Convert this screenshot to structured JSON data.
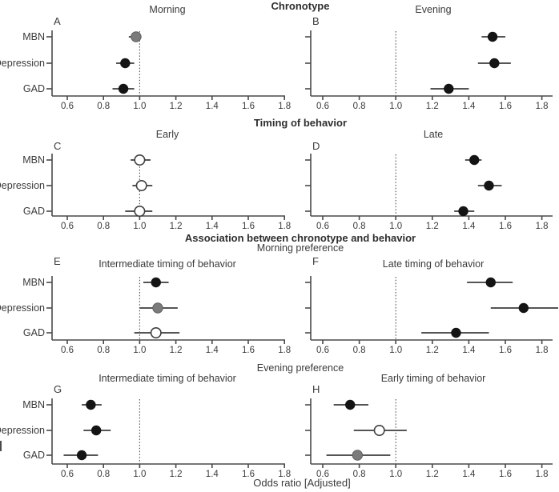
{
  "chart_data": {
    "type": "scatter",
    "subtype": "forest-plot-grid",
    "xlabel": "Odds ratio [Adjusted]",
    "x_ticks": [
      0.6,
      0.8,
      1.0,
      1.2,
      1.4,
      1.6,
      1.8
    ],
    "x_range": [
      0.52,
      1.9
    ],
    "reference_line": 1.0,
    "grid": false,
    "legend": false,
    "categories": [
      "MBN",
      "Depression",
      "GAD"
    ],
    "marker_colors": {
      "black": "#141414",
      "gray": "#7b7b7b",
      "white": "#ffffff"
    },
    "axis_color": "#4a4a4a",
    "line_color": "#555555",
    "text_color": "#3b3b3b",
    "sections": [
      {
        "title": "Chronotype",
        "subtitle": null,
        "panels": [
          {
            "letter": "A",
            "title": "Morning",
            "show_y_labels": true,
            "points": [
              {
                "label": "MBN",
                "or": 0.98,
                "lo": 0.94,
                "hi": 1.01,
                "marker": "gray"
              },
              {
                "label": "Depression",
                "or": 0.92,
                "lo": 0.87,
                "hi": 0.97,
                "marker": "black"
              },
              {
                "label": "GAD",
                "or": 0.91,
                "lo": 0.85,
                "hi": 0.97,
                "marker": "black"
              }
            ]
          },
          {
            "letter": "B",
            "title": "Evening",
            "show_y_labels": false,
            "points": [
              {
                "label": "MBN",
                "or": 1.53,
                "lo": 1.47,
                "hi": 1.6,
                "marker": "black"
              },
              {
                "label": "Depression",
                "or": 1.54,
                "lo": 1.45,
                "hi": 1.63,
                "marker": "black"
              },
              {
                "label": "GAD",
                "or": 1.29,
                "lo": 1.19,
                "hi": 1.4,
                "marker": "black"
              }
            ]
          }
        ]
      },
      {
        "title": "Timing of behavior",
        "subtitle": null,
        "panels": [
          {
            "letter": "C",
            "title": "Early",
            "show_y_labels": true,
            "points": [
              {
                "label": "MBN",
                "or": 1.0,
                "lo": 0.95,
                "hi": 1.06,
                "marker": "white"
              },
              {
                "label": "Depression",
                "or": 1.01,
                "lo": 0.96,
                "hi": 1.07,
                "marker": "white"
              },
              {
                "label": "GAD",
                "or": 1.0,
                "lo": 0.92,
                "hi": 1.07,
                "marker": "white"
              }
            ]
          },
          {
            "letter": "D",
            "title": "Late",
            "show_y_labels": false,
            "points": [
              {
                "label": "MBN",
                "or": 1.43,
                "lo": 1.38,
                "hi": 1.47,
                "marker": "black"
              },
              {
                "label": "Depression",
                "or": 1.51,
                "lo": 1.45,
                "hi": 1.58,
                "marker": "black"
              },
              {
                "label": "GAD",
                "or": 1.37,
                "lo": 1.32,
                "hi": 1.43,
                "marker": "black"
              }
            ]
          }
        ]
      },
      {
        "title": "Association between chronotype and behavior",
        "subtitle": "Morning preference",
        "panels": [
          {
            "letter": "E",
            "title": "Intermediate timing of behavior",
            "show_y_labels": true,
            "points": [
              {
                "label": "MBN",
                "or": 1.09,
                "lo": 1.02,
                "hi": 1.16,
                "marker": "black"
              },
              {
                "label": "Depression",
                "or": 1.1,
                "lo": 1.0,
                "hi": 1.21,
                "marker": "gray"
              },
              {
                "label": "GAD",
                "or": 1.09,
                "lo": 0.97,
                "hi": 1.22,
                "marker": "white"
              }
            ]
          },
          {
            "letter": "F",
            "title": "Late timing of behavior",
            "show_y_labels": false,
            "points": [
              {
                "label": "MBN",
                "or": 1.52,
                "lo": 1.39,
                "hi": 1.64,
                "marker": "black"
              },
              {
                "label": "Depression",
                "or": 1.7,
                "lo": 1.52,
                "hi": 1.89,
                "marker": "black"
              },
              {
                "label": "GAD",
                "or": 1.33,
                "lo": 1.14,
                "hi": 1.51,
                "marker": "black"
              }
            ]
          }
        ]
      },
      {
        "title": null,
        "subtitle": "Evening preference",
        "panels": [
          {
            "letter": "G",
            "title": "Intermediate timing of behavior",
            "show_y_labels": true,
            "points": [
              {
                "label": "MBN",
                "or": 0.73,
                "lo": 0.68,
                "hi": 0.79,
                "marker": "black"
              },
              {
                "label": "Depression",
                "or": 0.76,
                "lo": 0.69,
                "hi": 0.84,
                "marker": "black"
              },
              {
                "label": "GAD",
                "or": 0.68,
                "lo": 0.58,
                "hi": 0.77,
                "marker": "black"
              }
            ]
          },
          {
            "letter": "H",
            "title": "Early timing of behavior",
            "show_y_labels": false,
            "points": [
              {
                "label": "MBN",
                "or": 0.75,
                "lo": 0.66,
                "hi": 0.85,
                "marker": "black"
              },
              {
                "label": "Depression",
                "or": 0.91,
                "lo": 0.77,
                "hi": 1.06,
                "marker": "white"
              },
              {
                "label": "GAD",
                "or": 0.79,
                "lo": 0.62,
                "hi": 0.97,
                "marker": "gray"
              }
            ]
          }
        ]
      }
    ]
  }
}
